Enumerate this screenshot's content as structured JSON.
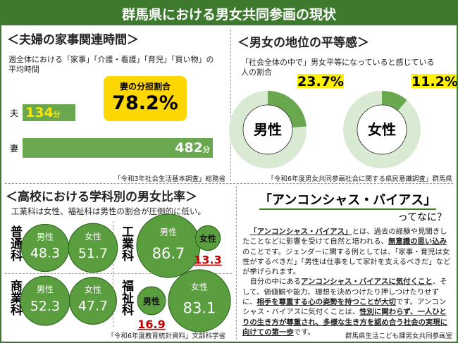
{
  "title": "群馬県における男女共同参画の現状",
  "housework": {
    "heading": "＜夫婦の家事関連時間＞",
    "description": "週全体における「家事」「介護・看護」「育児」「買い物」の平均時間",
    "categories": [
      "夫",
      "妻"
    ],
    "values": [
      134,
      482
    ],
    "unit": "分",
    "color": "#6aa84f",
    "share_label": "妻の分担割合",
    "share": {
      "value": 78.2,
      "label": "78.2%"
    },
    "source": "「令和3年社会生活基本調査」総務省"
  },
  "equality": {
    "heading": "＜男女の地位の平等感＞",
    "description": "「社会全体の中で」男女平等になっていると感じている人の割合",
    "donuts": [
      {
        "name": "男性",
        "value": 23.7,
        "label": "23.7%"
      },
      {
        "name": "女性",
        "value": 11.2,
        "label": "11.2%"
      }
    ],
    "color": "#6aa84f",
    "ring_color": "#d9ead3",
    "source": "「令和6年度男女共同参画社会に関する県民意識調査」群馬県"
  },
  "school": {
    "heading": "＜高校における学科別の男女比率＞",
    "description": "工業科は女性、福祉科は男性の割合が圧倒的に低い。",
    "color": "#5a9e3f",
    "departments": [
      {
        "name": "普通科",
        "series": [
          {
            "name": "男性",
            "value": 48.3
          },
          {
            "name": "女性",
            "value": 51.7
          }
        ]
      },
      {
        "name": "工業科",
        "series": [
          {
            "name": "男性",
            "value": 86.7
          },
          {
            "name": "女性",
            "value": 13.3
          }
        ]
      },
      {
        "name": "商業科",
        "series": [
          {
            "name": "男性",
            "value": 52.3
          },
          {
            "name": "女性",
            "value": 47.7
          }
        ]
      },
      {
        "name": "福祉科",
        "series": [
          {
            "name": "男性",
            "value": 16.9
          },
          {
            "name": "女性",
            "value": 83.1
          }
        ]
      }
    ],
    "source": "「令和6年度教育統計資料」文部科学省"
  },
  "bias": {
    "heading": "「アンコンシャス・バイアス」",
    "subheading": "ってなに？",
    "paragraphs": [
      [
        {
          "text": "「アンコンシャス・バイアス」",
          "strong": true
        },
        {
          "text": "とは、過去の経験や見聞きしたことなどに影響を受けて自然と培われる、"
        },
        {
          "text": "無意識の思い込み",
          "strong": true
        },
        {
          "text": "のことです。ジェンダーに関する例としては、「家事・育児は女性がするべきだ」「男性は仕事をして家計を支えるべきだ」などが挙げられます。"
        }
      ],
      [
        {
          "text": "自分の中にある"
        },
        {
          "text": "アンコンシャス・バイアスに気付くこと",
          "strong": true
        },
        {
          "text": "、そして、価値観や能力、理想を決めつけたり押しつけたりせずに、"
        },
        {
          "text": "相手を尊重する心の姿勢を持つことが大切",
          "strong": true
        },
        {
          "text": "です。アンコンシャス・バイアスに気付くことは、"
        },
        {
          "text": "性別に関わらず、一人ひとりの生き方が尊重され、多様な生き方を認め合う社会の実現に向けての第一歩",
          "strong": true
        },
        {
          "text": "です。"
        }
      ]
    ],
    "footer": "群馬県生活こども課男女共同参画室"
  }
}
